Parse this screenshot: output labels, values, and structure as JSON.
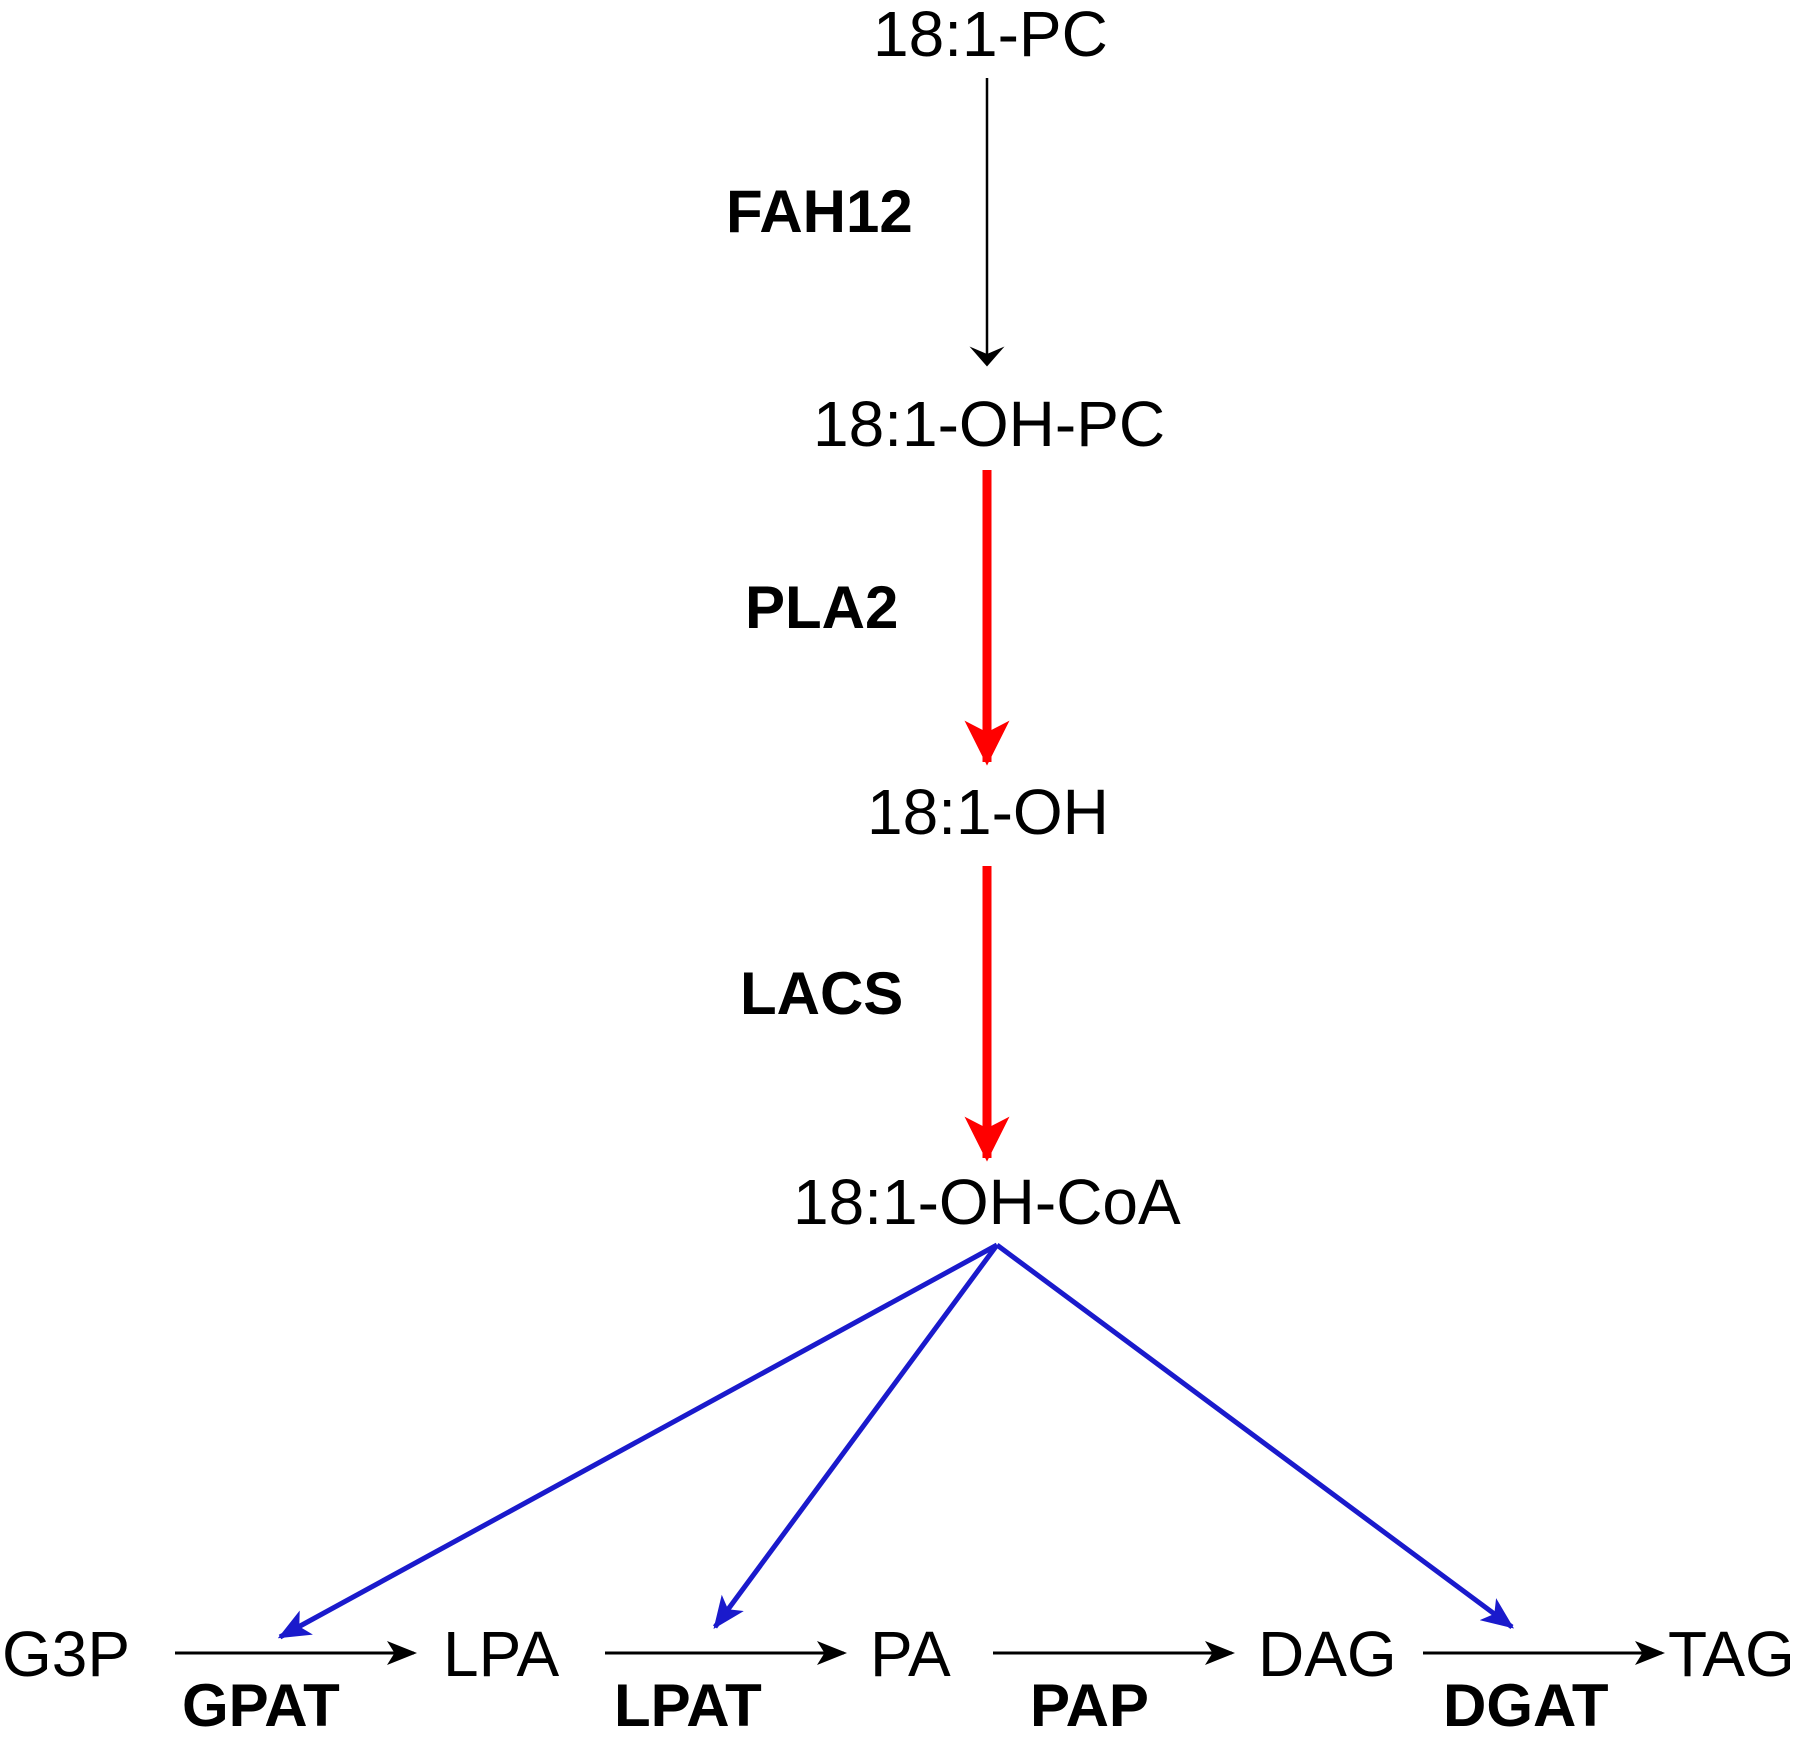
{
  "metabolites": {
    "pc": "18:1-PC",
    "oh_pc": "18:1-OH-PC",
    "oh": "18:1-OH",
    "oh_coa": "18:1-OH-CoA",
    "g3p": "G3P",
    "lpa": "LPA",
    "pa": "PA",
    "dag": "DAG",
    "tag": "TAG"
  },
  "enzymes": {
    "fah12": "FAH12",
    "pla2": "PLA2",
    "lacs": "LACS",
    "gpat": "GPAT",
    "lpat": "LPAT",
    "pap": "PAP",
    "dgat": "DGAT"
  },
  "colors": {
    "default_arrow": "#000000",
    "highlight_arrow": "#ff0000",
    "branch_arrow": "#1a1acc"
  }
}
